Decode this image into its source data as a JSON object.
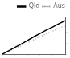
{
  "chart_data": {
    "type": "line",
    "x": [
      0,
      1,
      2,
      3,
      4,
      5,
      6,
      7,
      8,
      9,
      10
    ],
    "series": [
      {
        "name": "Qld",
        "color": "#000000",
        "line_style": "solid",
        "values": [
          0.0,
          1.0,
          2.0,
          3.0,
          4.1,
          5.2,
          6.2,
          7.2,
          8.1,
          9.1,
          10.0
        ]
      },
      {
        "name": "Aus",
        "color": "#aaaaaa",
        "line_style": "dotted",
        "values": [
          0.0,
          0.8,
          1.7,
          2.5,
          3.4,
          4.3,
          5.2,
          6.1,
          6.9,
          7.8,
          8.5
        ]
      }
    ],
    "xlim": [
      0,
      10
    ],
    "xticks": [
      0,
      2,
      4,
      6,
      8,
      10
    ],
    "ylim": [
      0,
      11
    ],
    "yticks": [
      0,
      3.3333333333333335,
      6.666666666666667,
      10
    ],
    "grid": false,
    "legend": "upper right",
    "tick_labels": false
  }
}
